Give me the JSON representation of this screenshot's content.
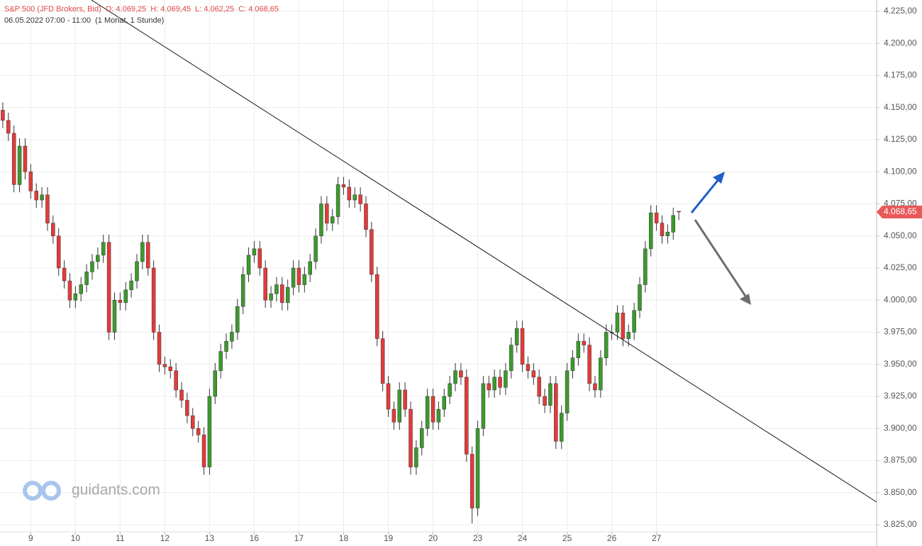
{
  "chart_data": {
    "type": "candlestick",
    "title": "S&P 500 (JFD Brokers, Bid)",
    "ohlc_labels": [
      "O: 4.069,25",
      "H: 4.069,45",
      "L: 4.062,25",
      "C: 4.068,65"
    ],
    "subtitle": "06.05.2022 07:00 - 11:00",
    "interval": "(1 Monat, 1 Stunde)",
    "watermark": "guidants.com",
    "last_value_label": "4.068,65",
    "up_color": "#3c9a2c",
    "down_color": "#e33b3b",
    "grid": true,
    "xlim": [
      -0.5,
      156.4
    ],
    "xticks": [
      {
        "value": 5,
        "label": "9"
      },
      {
        "value": 13,
        "label": "10"
      },
      {
        "value": 21,
        "label": "11"
      },
      {
        "value": 29,
        "label": "12"
      },
      {
        "value": 37,
        "label": "13"
      },
      {
        "value": 45,
        "label": "16"
      },
      {
        "value": 53,
        "label": "17"
      },
      {
        "value": 61,
        "label": "18"
      },
      {
        "value": 69,
        "label": "19"
      },
      {
        "value": 77,
        "label": "20"
      },
      {
        "value": 85,
        "label": "23"
      },
      {
        "value": 93,
        "label": "24"
      },
      {
        "value": 101,
        "label": "25"
      },
      {
        "value": 109,
        "label": "26"
      },
      {
        "value": 117,
        "label": "27"
      }
    ],
    "ylim": [
      3819.5,
      4233.8
    ],
    "yticks": [
      {
        "value": 3825,
        "label": "3.825,00"
      },
      {
        "value": 3850,
        "label": "3.850,00"
      },
      {
        "value": 3875,
        "label": "3.875,00"
      },
      {
        "value": 3900,
        "label": "3.900,00"
      },
      {
        "value": 3925,
        "label": "3.925,00"
      },
      {
        "value": 3950,
        "label": "3.950,00"
      },
      {
        "value": 3975,
        "label": "3.975,00"
      },
      {
        "value": 4000,
        "label": "4.000,00"
      },
      {
        "value": 4025,
        "label": "4.025,00"
      },
      {
        "value": 4050,
        "label": "4.050,00"
      },
      {
        "value": 4075,
        "label": "4.075,00"
      },
      {
        "value": 4100,
        "label": "4.100,00"
      },
      {
        "value": 4125,
        "label": "4.125,00"
      },
      {
        "value": 4150,
        "label": "4.150,00"
      },
      {
        "value": 4175,
        "label": "4.175,00"
      },
      {
        "value": 4200,
        "label": "4.200,00"
      },
      {
        "value": 4225,
        "label": "4.225,00"
      }
    ],
    "open": [
      4148,
      4140,
      4130,
      4090,
      4120,
      4100,
      4085,
      4078,
      4082,
      4060,
      4050,
      4025,
      4015,
      4000,
      4005,
      4012,
      4022,
      4030,
      4035,
      4045,
      3975,
      4000,
      3998,
      4008,
      4015,
      4030,
      4045,
      4025,
      3975,
      3950,
      3948,
      3945,
      3930,
      3922,
      3910,
      3900,
      3895,
      3870,
      3925,
      3945,
      3960,
      3968,
      3975,
      3995,
      4020,
      4035,
      4040,
      4025,
      4000,
      4005,
      4012,
      3998,
      4010,
      4025,
      4012,
      4020,
      4030,
      4050,
      4075,
      4060,
      4065,
      4090,
      4088,
      4078,
      4082,
      4075,
      4055,
      4020,
      3970,
      3935,
      3915,
      3905,
      3930,
      3915,
      3870,
      3885,
      3900,
      3925,
      3905,
      3915,
      3925,
      3935,
      3945,
      3940,
      3880,
      3838,
      3900,
      3935,
      3930,
      3940,
      3932,
      3945,
      3965,
      3978,
      3950,
      3945,
      3940,
      3925,
      3918,
      3935,
      3890,
      3912,
      3945,
      3955,
      3968,
      3965,
      3935,
      3930,
      3955,
      3975,
      3975,
      3990,
      3970,
      3975,
      3992,
      4012,
      4040,
      4068,
      4060,
      4050,
      4053,
      4069.25
    ],
    "high": [
      4154,
      4146,
      4136,
      4126,
      4126,
      4106,
      4091,
      4088,
      4088,
      4066,
      4056,
      4031,
      4021,
      4011,
      4018,
      4028,
      4036,
      4041,
      4051,
      4051,
      4006,
      4006,
      4014,
      4021,
      4036,
      4051,
      4051,
      4031,
      3981,
      3956,
      3954,
      3951,
      3936,
      3928,
      3916,
      3906,
      3901,
      3931,
      3951,
      3966,
      3974,
      3981,
      4001,
      4026,
      4041,
      4046,
      4046,
      4031,
      4011,
      4018,
      4018,
      4016,
      4031,
      4031,
      4026,
      4036,
      4056,
      4081,
      4081,
      4071,
      4096,
      4096,
      4094,
      4088,
      4088,
      4081,
      4061,
      4026,
      3976,
      3941,
      3921,
      3936,
      3936,
      3921,
      3891,
      3906,
      3931,
      3931,
      3921,
      3931,
      3941,
      3951,
      3951,
      3946,
      3886,
      3906,
      3941,
      3941,
      3946,
      3946,
      3951,
      3971,
      3984,
      3984,
      3956,
      3951,
      3946,
      3931,
      3941,
      3941,
      3918,
      3951,
      3961,
      3974,
      3974,
      3971,
      3941,
      3961,
      3981,
      3981,
      3996,
      3996,
      3981,
      3998,
      4018,
      4046,
      4074,
      4074,
      4066,
      4059,
      4072,
      4069.45
    ],
    "low": [
      4134,
      4124,
      4084,
      4084,
      4094,
      4079,
      4072,
      4072,
      4054,
      4044,
      4019,
      4009,
      3994,
      3994,
      3999,
      4006,
      4016,
      4024,
      4029,
      3969,
      3969,
      3992,
      3992,
      4002,
      4009,
      4024,
      4019,
      3969,
      3944,
      3942,
      3939,
      3924,
      3916,
      3904,
      3894,
      3889,
      3864,
      3864,
      3919,
      3939,
      3954,
      3962,
      3969,
      3989,
      4014,
      4029,
      4019,
      3994,
      3994,
      3999,
      3992,
      3992,
      4004,
      4006,
      4006,
      4014,
      4024,
      4044,
      4054,
      4054,
      4059,
      4082,
      4072,
      4072,
      4069,
      4049,
      4014,
      3964,
      3929,
      3909,
      3899,
      3899,
      3909,
      3864,
      3864,
      3879,
      3894,
      3899,
      3899,
      3909,
      3919,
      3929,
      3934,
      3874,
      3826,
      3832,
      3894,
      3924,
      3924,
      3926,
      3926,
      3939,
      3959,
      3944,
      3939,
      3934,
      3919,
      3912,
      3912,
      3884,
      3884,
      3906,
      3939,
      3949,
      3959,
      3929,
      3924,
      3924,
      3949,
      3969,
      3969,
      3964,
      3964,
      3969,
      3986,
      4006,
      4034,
      4054,
      4044,
      4044,
      4047,
      4062.25
    ],
    "close": [
      4140,
      4130,
      4090,
      4120,
      4100,
      4085,
      4078,
      4082,
      4060,
      4050,
      4025,
      4015,
      4000,
      4005,
      4012,
      4022,
      4030,
      4035,
      4045,
      3975,
      4000,
      3998,
      4008,
      4015,
      4030,
      4045,
      4025,
      3975,
      3950,
      3948,
      3945,
      3930,
      3922,
      3910,
      3900,
      3895,
      3870,
      3925,
      3945,
      3960,
      3968,
      3975,
      3995,
      4020,
      4035,
      4040,
      4025,
      4000,
      4005,
      4012,
      3998,
      4010,
      4025,
      4012,
      4020,
      4030,
      4050,
      4075,
      4060,
      4065,
      4090,
      4088,
      4078,
      4082,
      4075,
      4055,
      4020,
      3970,
      3935,
      3915,
      3905,
      3930,
      3915,
      3870,
      3885,
      3900,
      3925,
      3905,
      3915,
      3925,
      3935,
      3945,
      3940,
      3880,
      3838,
      3900,
      3935,
      3930,
      3940,
      3932,
      3945,
      3965,
      3978,
      3950,
      3945,
      3940,
      3925,
      3918,
      3935,
      3890,
      3912,
      3945,
      3955,
      3968,
      3965,
      3935,
      3930,
      3955,
      3975,
      3975,
      3990,
      3970,
      3975,
      3992,
      4012,
      4040,
      4068,
      4060,
      4050,
      4053,
      4066,
      4068.65
    ]
  }
}
